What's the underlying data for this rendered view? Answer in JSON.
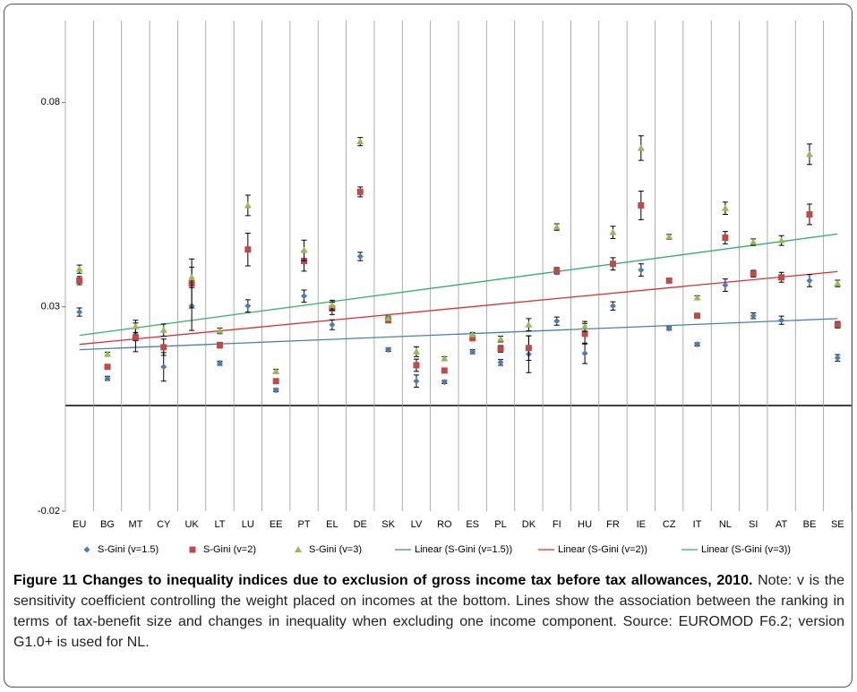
{
  "chart_data": {
    "type": "scatter",
    "categories": [
      "EU",
      "BG",
      "MT",
      "CY",
      "UK",
      "LT",
      "LU",
      "EE",
      "PT",
      "EL",
      "DE",
      "SK",
      "LV",
      "RO",
      "ES",
      "PL",
      "DK",
      "FI",
      "HU",
      "FR",
      "IE",
      "CZ",
      "IT",
      "NL",
      "SI",
      "AT",
      "BE",
      "SE"
    ],
    "series": [
      {
        "name": "S-Gini (v=1.5)",
        "color": "#4a7ebb",
        "marker": "diamond",
        "values": [
          0.0287,
          0.0125,
          0.0232,
          0.0153,
          0.0302,
          0.0162,
          0.0302,
          0.0096,
          0.0326,
          0.0256,
          0.0423,
          0.0195,
          0.0118,
          0.0116,
          0.019,
          0.0164,
          0.0184,
          0.0265,
          0.0186,
          0.0302,
          0.039,
          0.0247,
          0.0208,
          0.0353,
          0.0278,
          0.0267,
          0.0364,
          0.0175
        ],
        "errors": [
          0.001,
          0.0005,
          0.0015,
          0.0035,
          0.006,
          0.0005,
          0.0015,
          0.0004,
          0.0015,
          0.0012,
          0.001,
          0.0004,
          0.0015,
          0.0004,
          0.0005,
          0.0007,
          0.0045,
          0.001,
          0.0025,
          0.001,
          0.0015,
          0.0004,
          0.0004,
          0.0015,
          0.0007,
          0.001,
          0.0015,
          0.0008
        ]
      },
      {
        "name": "S-Gini (v=2)",
        "color": "#be4b48",
        "marker": "square",
        "values": [
          0.0364,
          0.0153,
          0.0225,
          0.0201,
          0.0357,
          0.0206,
          0.044,
          0.0118,
          0.0412,
          0.0296,
          0.0581,
          0.0267,
          0.0157,
          0.0144,
          0.0223,
          0.0197,
          0.0199,
          0.0388,
          0.0234,
          0.0405,
          0.0548,
          0.0364,
          0.0278,
          0.0469,
          0.0381,
          0.0372,
          0.0526,
          0.0256
        ],
        "errors": [
          0.001,
          0.0005,
          0.0035,
          0.002,
          0.006,
          0.0007,
          0.004,
          0.0005,
          0.0025,
          0.0015,
          0.0012,
          0.0004,
          0.0015,
          0.0005,
          0.0005,
          0.0008,
          0.003,
          0.0008,
          0.0025,
          0.0015,
          0.0035,
          0.0004,
          0.0005,
          0.0015,
          0.0008,
          0.0012,
          0.0025,
          0.0008
        ]
      },
      {
        "name": "S-Gini (v=3)",
        "color": "#98b954",
        "marker": "triangle",
        "values": [
          0.0392,
          0.0184,
          0.0252,
          0.0243,
          0.0372,
          0.0241,
          0.0548,
          0.0142,
          0.0438,
          0.0304,
          0.0704,
          0.0271,
          0.019,
          0.0173,
          0.0232,
          0.0221,
          0.0256,
          0.0495,
          0.0252,
          0.0482,
          0.0688,
          0.0471,
          0.0322,
          0.0541,
          0.0458,
          0.0462,
          0.0673,
          0.0357
        ],
        "errors": [
          0.001,
          0.0005,
          0.0015,
          0.0015,
          0.0025,
          0.0007,
          0.0025,
          0.0005,
          0.0025,
          0.0012,
          0.001,
          0.0006,
          0.0012,
          0.0005,
          0.0005,
          0.0007,
          0.0015,
          0.0008,
          0.0012,
          0.0015,
          0.003,
          0.0006,
          0.0005,
          0.0015,
          0.0008,
          0.0012,
          0.0025,
          0.0008
        ]
      }
    ],
    "trendlines": [
      {
        "name": "Linear (S-Gini (v=1.5))",
        "color": "#4a7ebb",
        "start": 0.0195,
        "end": 0.0271
      },
      {
        "name": "Linear (S-Gini (v=2))",
        "color": "#d9302c",
        "start": 0.0208,
        "end": 0.0386
      },
      {
        "name": "Linear (S-Gini (v=3))",
        "color": "#2fb06a",
        "start": 0.023,
        "end": 0.0478
      }
    ],
    "ylim": [
      -0.02,
      0.1
    ],
    "yticks": [
      -0.02,
      0.03,
      0.08
    ],
    "grid": true
  },
  "caption": {
    "title": "Figure 11 Changes to inequality indices due to exclusion of gross income tax before tax allowances, 2010.",
    "text": " Note: v is the sensitivity coefficient controlling the weight placed on incomes at the bottom. Lines show the association between the ranking in terms of tax-benefit size and changes in inequality when excluding one income component. Source: EUROMOD F6.2; version G1.0+ is used for NL."
  }
}
